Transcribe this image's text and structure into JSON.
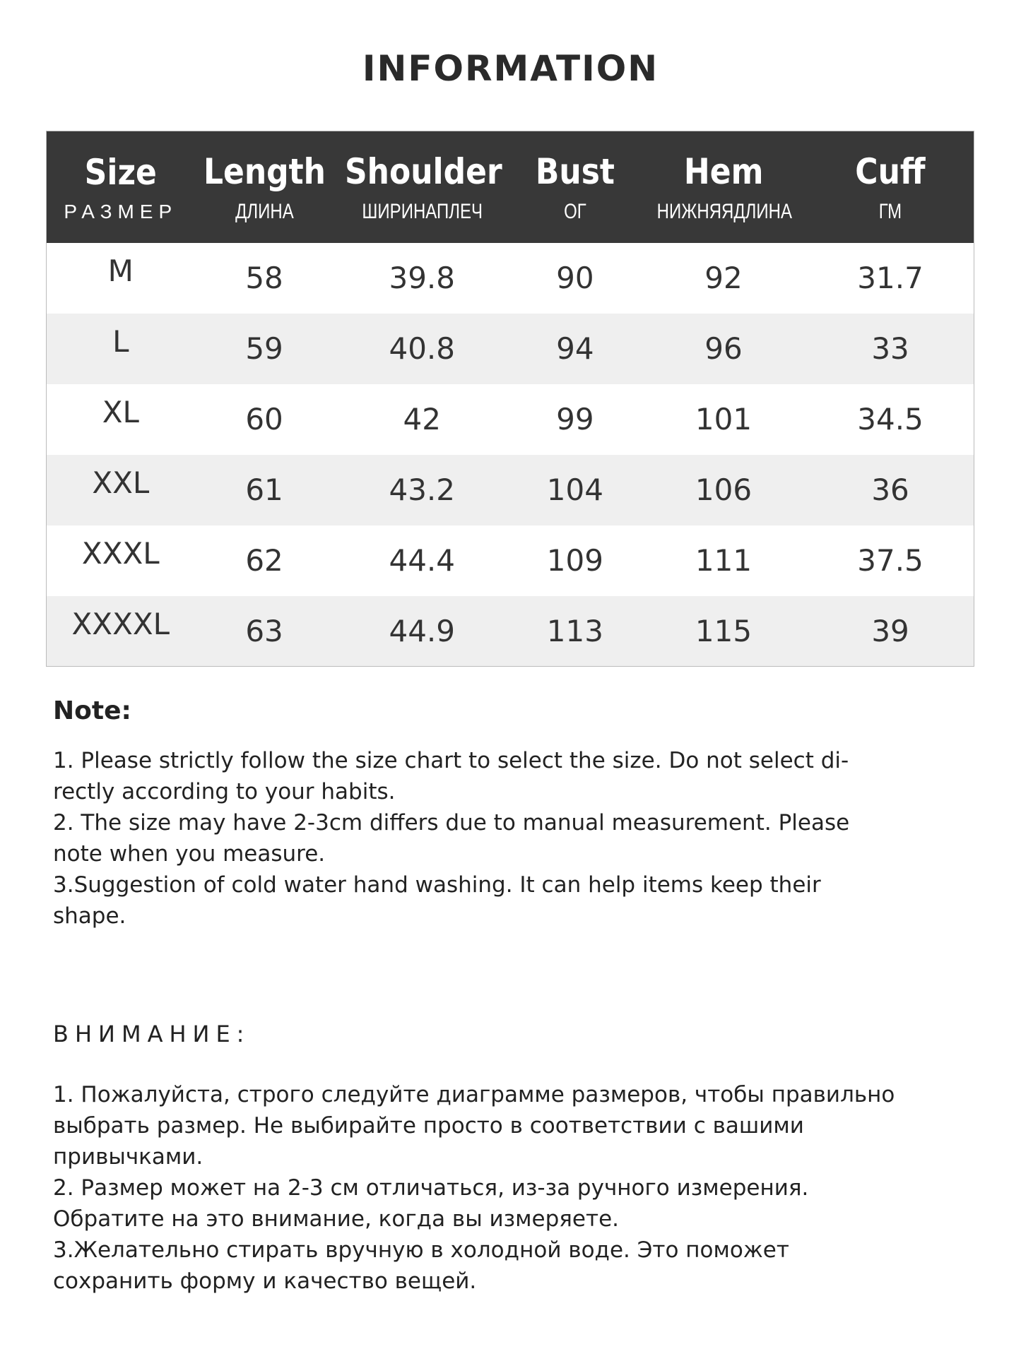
{
  "title": "INFORMATION",
  "table": {
    "headers": [
      {
        "en": "Size",
        "ru": "РАЗМЕР"
      },
      {
        "en": "Length",
        "ru": "ДЛИНА"
      },
      {
        "en": "Shoulder",
        "ru": "ШИРИНАПЛЕЧ"
      },
      {
        "en": "Bust",
        "ru": "ОГ"
      },
      {
        "en": "Hem",
        "ru": "НИЖНЯЯДЛИНА"
      },
      {
        "en": "Cuff",
        "ru": "ГМ"
      }
    ],
    "rows": [
      [
        "M",
        "58",
        "39.8",
        "90",
        "92",
        "31.7"
      ],
      [
        "L",
        "59",
        "40.8",
        "94",
        "96",
        "33"
      ],
      [
        "XL",
        "60",
        "42",
        "99",
        "101",
        "34.5"
      ],
      [
        "XXL",
        "61",
        "43.2",
        "104",
        "106",
        "36"
      ],
      [
        "XXXL",
        "62",
        "44.4",
        "109",
        "111",
        "37.5"
      ],
      [
        "XXXXL",
        "63",
        "44.9",
        "113",
        "115",
        "39"
      ]
    ]
  },
  "note_en": {
    "heading": "Note:",
    "lines": [
      "1. Please strictly follow the size chart  to select the size. Do not select di-",
      "rectly according to your habits.",
      "2. The size may have 2-3cm differs due to manual measurement. Please",
      "note when you measure.",
      "3.Suggestion of cold water hand washing. It can help items keep their",
      "shape."
    ]
  },
  "note_ru": {
    "heading": "ВНИМАНИЕ:",
    "lines": [
      "1. Пожалуйста, строго следуйте диаграмме размеров, чтобы правильно",
      "выбрать размер. Не выбирайте просто в соответствии с вашими",
      "привычками.",
      "2. Размер может на 2-3 см отличаться, из-за ручного измерения.",
      "Обратите на это внимание, когда вы измеряете.",
      "3.Желательно стирать вручную в холодной воде. Это поможет",
      "сохранить форму и качество вещей."
    ]
  }
}
